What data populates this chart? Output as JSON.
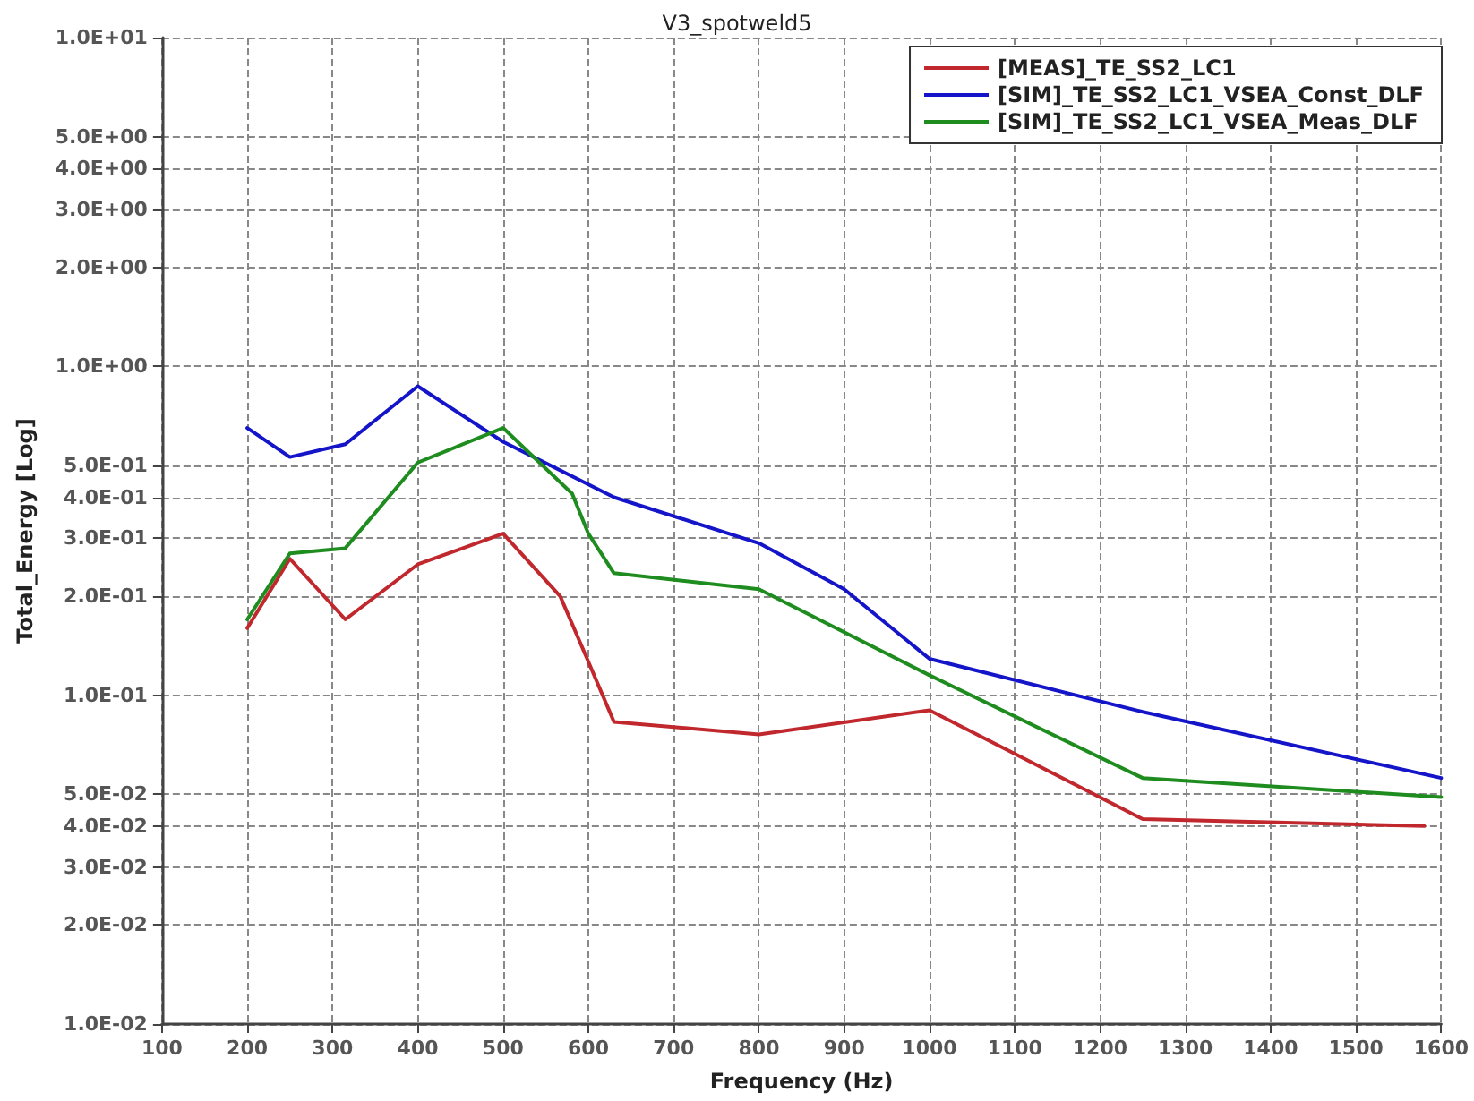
{
  "chart_data": {
    "type": "line",
    "title": "V3_spotweld5",
    "xlabel": "Frequency (Hz)",
    "ylabel": "Total_Energy [Log]",
    "series": [
      {
        "name": "[MEAS]_TE_SS2_LC1",
        "color": "#c0282d",
        "x": [
          200,
          250,
          315,
          400,
          500,
          567,
          598,
          630,
          800,
          1000,
          1250,
          1580
        ],
        "values": [
          0.16,
          0.26,
          0.17,
          0.25,
          0.31,
          0.2,
          0.13,
          0.083,
          0.076,
          0.09,
          0.042,
          0.04
        ]
      },
      {
        "name": "[SIM]_TE_SS2_LC1_VSEA_Const_DLF",
        "color": "#1414c8",
        "x": [
          200,
          250,
          315,
          400,
          500,
          630,
          800,
          900,
          1000,
          1250,
          1600
        ],
        "values": [
          0.65,
          0.53,
          0.58,
          0.87,
          0.59,
          0.4,
          0.29,
          0.21,
          0.129,
          0.089,
          0.056
        ]
      },
      {
        "name": "[SIM]_TE_SS2_LC1_VSEA_Meas_DLF",
        "color": "#1e8c1e",
        "x": [
          200,
          250,
          315,
          400,
          500,
          581,
          600,
          630,
          800,
          1000,
          1250,
          1600
        ],
        "values": [
          0.17,
          0.27,
          0.28,
          0.51,
          0.65,
          0.41,
          0.31,
          0.235,
          0.21,
          0.115,
          0.056,
          0.049
        ]
      }
    ],
    "xlim": [
      100,
      1600
    ],
    "xticks": [
      100,
      200,
      300,
      400,
      500,
      600,
      700,
      800,
      900,
      1000,
      1100,
      1200,
      1300,
      1400,
      1500,
      1600
    ],
    "ylim": [
      0.01,
      10
    ],
    "yticks": [
      {
        "value": 0.01,
        "label": "1.0E-02"
      },
      {
        "value": 0.02,
        "label": "2.0E-02"
      },
      {
        "value": 0.03,
        "label": "3.0E-02"
      },
      {
        "value": 0.04,
        "label": "4.0E-02"
      },
      {
        "value": 0.05,
        "label": "5.0E-02"
      },
      {
        "value": 0.1,
        "label": "1.0E-01"
      },
      {
        "value": 0.2,
        "label": "2.0E-01"
      },
      {
        "value": 0.3,
        "label": "3.0E-01"
      },
      {
        "value": 0.4,
        "label": "4.0E-01"
      },
      {
        "value": 0.5,
        "label": "5.0E-01"
      },
      {
        "value": 1,
        "label": "1.0E+00"
      },
      {
        "value": 2,
        "label": "2.0E+00"
      },
      {
        "value": 3,
        "label": "3.0E+00"
      },
      {
        "value": 4,
        "label": "4.0E+00"
      },
      {
        "value": 5,
        "label": "5.0E+00"
      },
      {
        "value": 10,
        "label": "1.0E+01"
      }
    ],
    "log": "y",
    "grid": true,
    "legend": "top right",
    "marker": "none",
    "line_style": "solid"
  }
}
